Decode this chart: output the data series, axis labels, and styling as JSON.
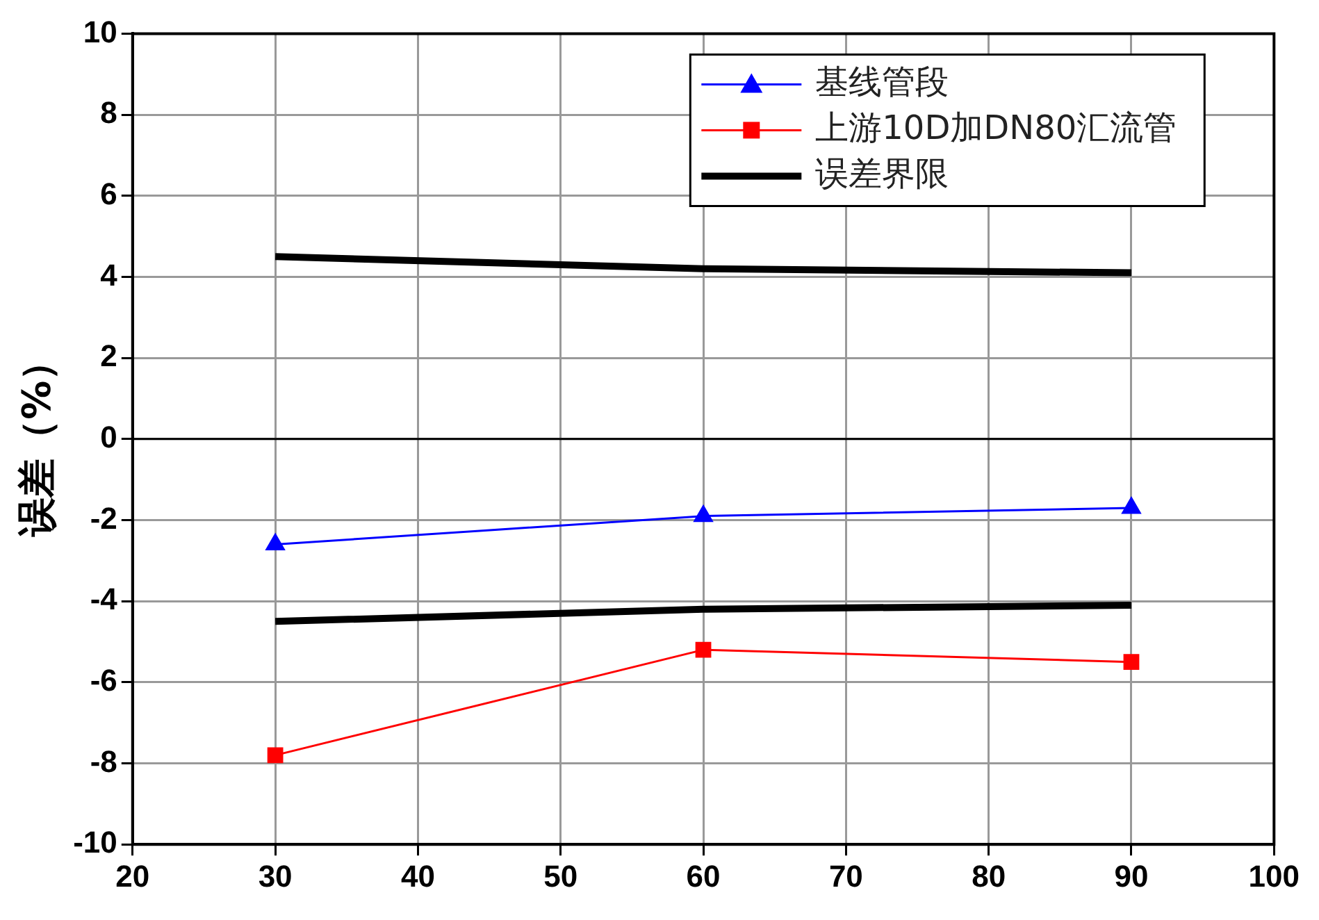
{
  "chart_data": {
    "type": "line",
    "ylabel": "误差（%）",
    "x": [
      30,
      60,
      90
    ],
    "series": [
      {
        "name": "基线管段",
        "color": "#0000ff",
        "values": [
          -2.6,
          -1.9,
          -1.7
        ],
        "marker": "triangle"
      },
      {
        "name": "上游10D加DN80汇流管",
        "color": "#ff0000",
        "values": [
          -7.8,
          -5.2,
          -5.5
        ],
        "marker": "square"
      },
      {
        "name": "误差界限",
        "color": "#000000",
        "values": [
          4.5,
          4.2,
          4.1
        ],
        "marker": "none"
      },
      {
        "color": "#000000",
        "values": [
          -4.5,
          -4.2,
          -4.1
        ],
        "marker": "none"
      }
    ],
    "xlim": [
      20,
      100
    ],
    "xticks": [
      20,
      30,
      40,
      50,
      60,
      70,
      80,
      90,
      100
    ],
    "ylim": [
      -10,
      10
    ],
    "yticks": [
      -10,
      -8,
      -6,
      -4,
      -2,
      0,
      2,
      4,
      6,
      8,
      10
    ],
    "ref_lines": [
      {
        "axis": "y",
        "value": 0,
        "color": "#000000"
      }
    ],
    "grid": true,
    "legend": "top right"
  }
}
